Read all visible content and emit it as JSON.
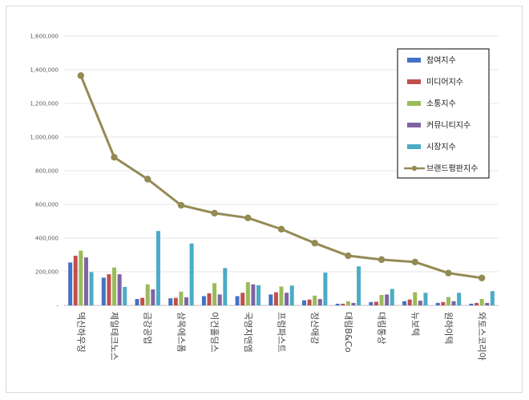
{
  "chart_data": {
    "type": "bar",
    "title": "",
    "xlabel": "",
    "ylabel": "",
    "ylim": [
      0,
      1600000
    ],
    "yticks": [
      0,
      200000,
      400000,
      600000,
      800000,
      1000000,
      1200000,
      1400000,
      1600000
    ],
    "ytick_labels": [
      "-",
      "200,000",
      "400,000",
      "600,000",
      "800,000",
      "1,000,000",
      "1,200,000",
      "1,400,000",
      "1,600,000"
    ],
    "grid": true,
    "legend_position": "top-right",
    "categories": [
      "덱신하우징",
      "제일테크노스",
      "금강공업",
      "삼목에스폼",
      "이건홀딩스",
      "국영지앤엠",
      "프럼파스트",
      "정산애강",
      "대림B&Co",
      "대림통상",
      "뉴보텍",
      "원하이텍",
      "와토스코리아"
    ],
    "series": [
      {
        "name": "참여지수",
        "type": "bar",
        "color": "#4472c4",
        "values": [
          255000,
          165000,
          38000,
          42000,
          55000,
          55000,
          65000,
          30000,
          10000,
          20000,
          25000,
          15000,
          10000
        ]
      },
      {
        "name": "미디어지수",
        "type": "bar",
        "color": "#c0504d",
        "values": [
          295000,
          185000,
          45000,
          45000,
          72000,
          75000,
          78000,
          35000,
          10000,
          22000,
          35000,
          20000,
          15000
        ]
      },
      {
        "name": "소통지수",
        "type": "bar",
        "color": "#9bbb59",
        "values": [
          325000,
          225000,
          125000,
          82000,
          132000,
          138000,
          112000,
          58000,
          25000,
          62000,
          78000,
          50000,
          38000
        ]
      },
      {
        "name": "커뮤니티지수",
        "type": "bar",
        "color": "#8064a2",
        "values": [
          285000,
          185000,
          95000,
          48000,
          65000,
          125000,
          75000,
          38000,
          15000,
          65000,
          28000,
          25000,
          15000
        ]
      },
      {
        "name": "시장지수",
        "type": "bar",
        "color": "#4bacc6",
        "values": [
          198000,
          110000,
          442000,
          368000,
          222000,
          120000,
          118000,
          195000,
          232000,
          98000,
          75000,
          75000,
          85000
        ]
      },
      {
        "name": "브랜드평판지수",
        "type": "line",
        "color": "#948a54",
        "values": [
          1365000,
          880000,
          750000,
          595000,
          548000,
          520000,
          453000,
          370000,
          295000,
          272000,
          258000,
          192000,
          163000
        ]
      }
    ]
  }
}
